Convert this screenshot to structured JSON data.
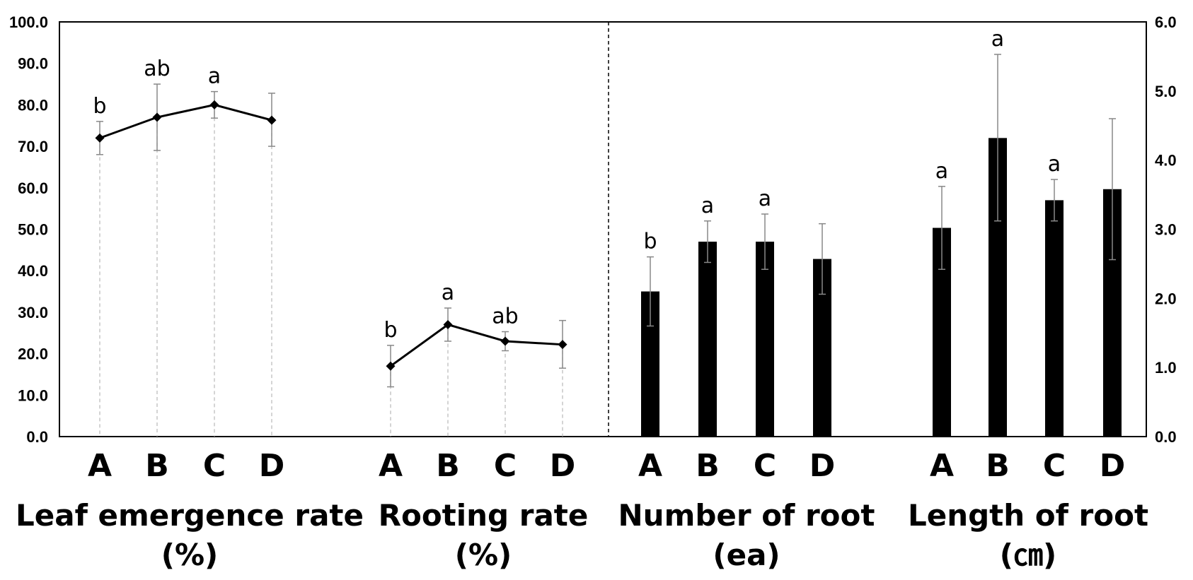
{
  "chart_data": {
    "type": "line+bar",
    "left_axis": {
      "min": 0,
      "max": 100,
      "step": 10,
      "tick_labels": [
        "0.0",
        "10.0",
        "20.0",
        "30.0",
        "40.0",
        "50.0",
        "60.0",
        "70.0",
        "80.0",
        "90.0",
        "100.0"
      ]
    },
    "right_axis": {
      "min": 0,
      "max": 6,
      "step": 1,
      "tick_labels": [
        "0.0",
        "1.0",
        "2.0",
        "3.0",
        "4.0",
        "5.0",
        "6.0"
      ]
    },
    "groups": [
      {
        "key": "leaf",
        "type": "line",
        "axis": "left",
        "label_line1": "Leaf emergence rate",
        "label_line2": "(%)",
        "categories": [
          "A",
          "B",
          "C",
          "D"
        ],
        "values": [
          72,
          77,
          80,
          76.3
        ],
        "err_high": [
          76,
          85,
          83.2,
          82.8
        ],
        "err_low": [
          68,
          69,
          76.8,
          70
        ],
        "letters": [
          "b",
          "ab",
          "a",
          ""
        ]
      },
      {
        "key": "rooting",
        "type": "line",
        "axis": "left",
        "label_line1": "Rooting rate",
        "label_line2": "(%)",
        "categories": [
          "A",
          "B",
          "C",
          "D"
        ],
        "values": [
          17,
          27,
          23,
          22.2
        ],
        "err_high": [
          22,
          31,
          25.3,
          28
        ],
        "err_low": [
          12,
          23,
          20.7,
          16.5
        ],
        "letters": [
          "b",
          "a",
          "ab",
          ""
        ]
      },
      {
        "key": "number",
        "type": "bar",
        "axis": "right",
        "label_line1": "Number of root",
        "label_line2": "(ea)",
        "categories": [
          "A",
          "B",
          "C",
          "D"
        ],
        "values": [
          2.1,
          2.82,
          2.82,
          2.57
        ],
        "err_high": [
          2.6,
          3.12,
          3.22,
          3.08
        ],
        "err_low": [
          1.6,
          2.52,
          2.42,
          2.06
        ],
        "letters": [
          "b",
          "a",
          "a",
          ""
        ]
      },
      {
        "key": "length",
        "type": "bar",
        "axis": "right",
        "label_line1": "Length of root",
        "label_line2": "(㎝)",
        "categories": [
          "A",
          "B",
          "C",
          "D"
        ],
        "values": [
          3.02,
          4.32,
          3.42,
          3.58
        ],
        "err_high": [
          3.62,
          5.53,
          3.72,
          4.6
        ],
        "err_low": [
          2.42,
          3.12,
          3.12,
          2.56
        ],
        "letters": [
          "a",
          "a",
          "a",
          ""
        ]
      }
    ]
  }
}
